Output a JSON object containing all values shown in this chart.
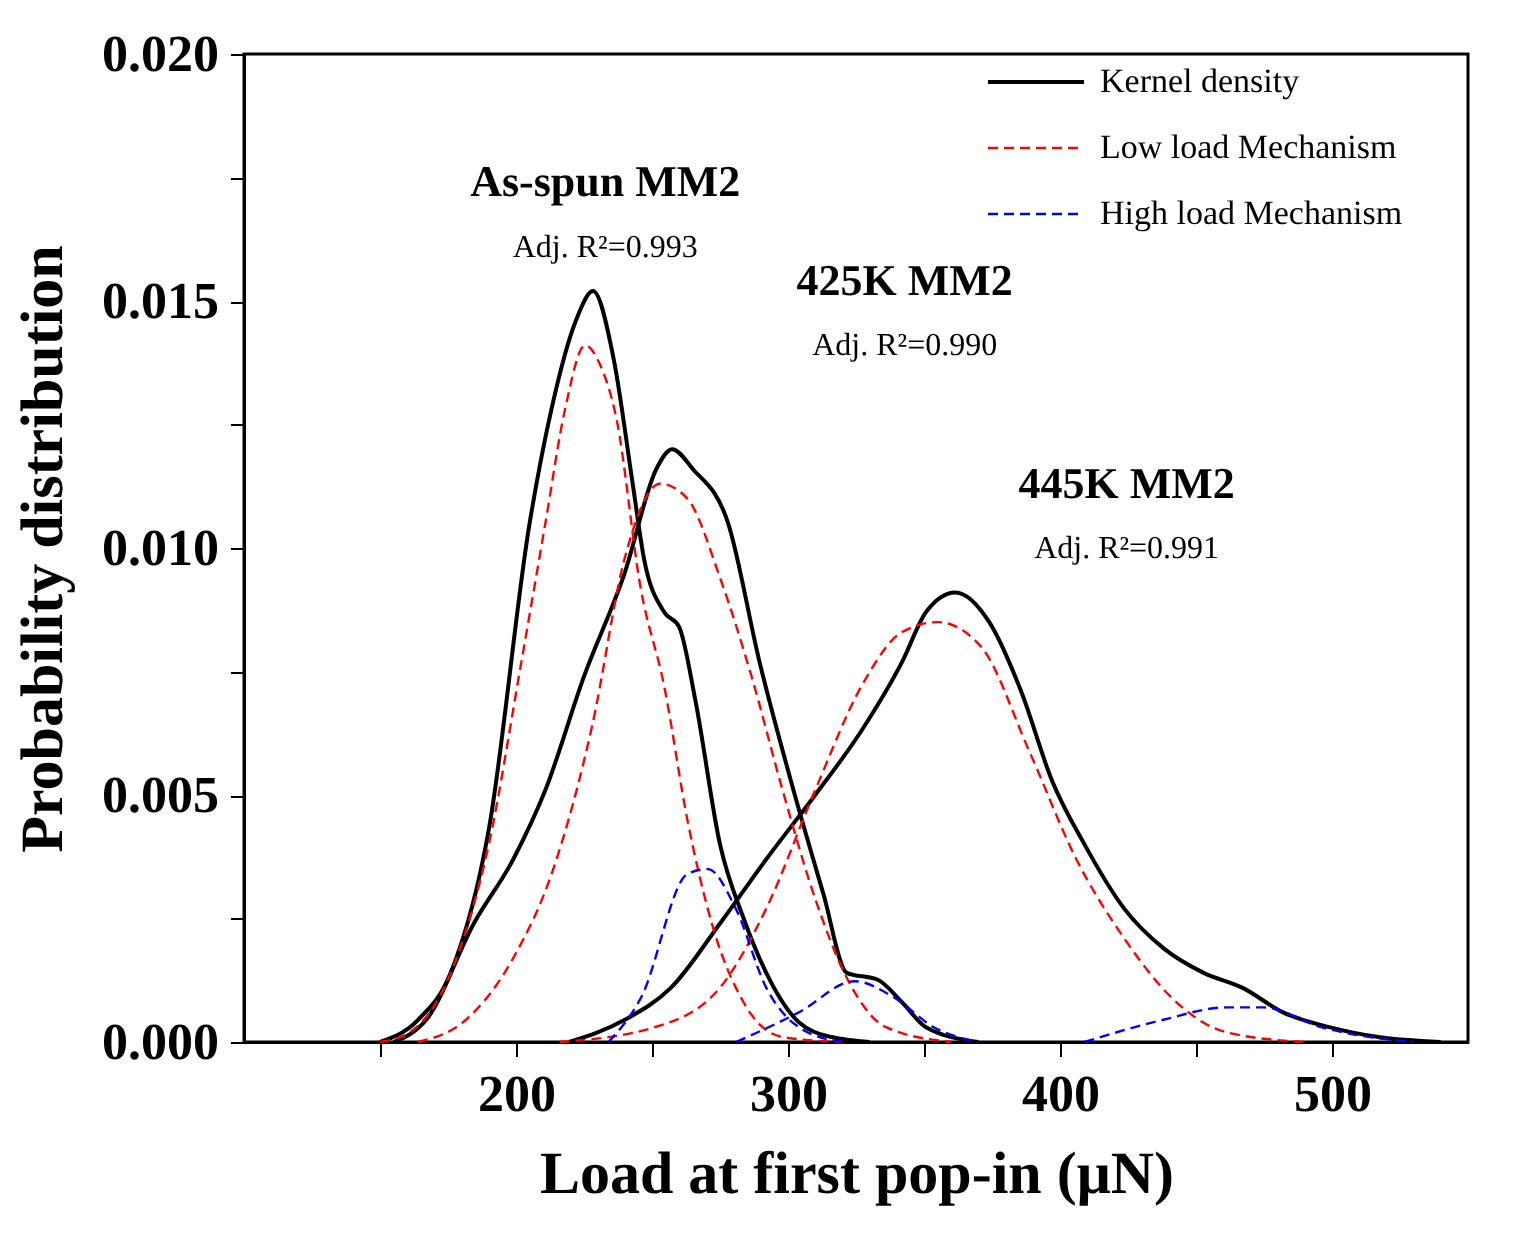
{
  "chart_data": {
    "type": "line",
    "xlabel": "Load at first pop-in (μN)",
    "ylabel": "Probability distribution",
    "xlim": [
      100,
      550
    ],
    "ylim": [
      0,
      0.02
    ],
    "xticks": [
      {
        "value": 150,
        "label": null
      },
      200,
      {
        "value": 250,
        "label": null
      },
      300,
      {
        "value": 350,
        "label": null
      },
      400,
      {
        "value": 450,
        "label": null
      },
      500
    ],
    "yticks": [
      {
        "value": 0,
        "label": "0.000"
      },
      {
        "value": 0.0025,
        "label": null
      },
      {
        "value": 0.005,
        "label": "0.005"
      },
      {
        "value": 0.0075,
        "label": null
      },
      {
        "value": 0.01,
        "label": "0.010"
      },
      {
        "value": 0.0125,
        "label": null
      },
      {
        "value": 0.015,
        "label": "0.015"
      },
      {
        "value": 0.0175,
        "label": null
      },
      {
        "value": 0.02,
        "label": "0.020"
      }
    ],
    "grid": false,
    "legend": "top right",
    "marker": "none",
    "series": [
      {
        "name": "Kernel density",
        "color": "#000000",
        "line_style": "solid",
        "x": [
          150,
          164,
          176,
          190,
          205,
          213,
          222,
          228.3,
          236,
          242.9,
          247,
          254.5,
          260,
          266,
          275,
          283.7,
          292,
          304,
          316,
          330
        ],
        "values": [
          0,
          0.00045,
          0.0014,
          0.0043,
          0.0105,
          0.0128,
          0.0146,
          0.0152,
          0.0138,
          0.0113,
          0.0098,
          0.0087,
          0.0084,
          0.0069,
          0.004,
          0.0025,
          0.0014,
          0.0004,
          0.0001,
          0
        ]
      },
      {
        "color": "#000000",
        "line_style": "solid",
        "x": [
          155,
          167,
          184.5,
          199,
          210.8,
          225,
          240,
          251.6,
          257.4,
          265,
          278,
          289.5,
          301,
          313,
          321.6,
          333,
          342,
          350.7,
          370
        ],
        "values": [
          0,
          0.00045,
          0.0024,
          0.0037,
          0.0051,
          0.0074,
          0.0095,
          0.0116,
          0.012,
          0.0116,
          0.0105,
          0.0077,
          0.0053,
          0.003,
          0.0014,
          0.00126,
          0.0008,
          0.0003,
          0
        ]
      },
      {
        "color": "#000000",
        "line_style": "solid",
        "x": [
          219.5,
          240,
          257,
          275,
          292,
          310,
          327,
          342,
          350.7,
          361.5,
          374,
          385.7,
          397,
          409,
          423.6,
          438,
          452.8,
          467,
          482,
          499,
          517,
          540
        ],
        "values": [
          0,
          0.00045,
          0.0011,
          0.0024,
          0.0037,
          0.005,
          0.0063,
          0.0077,
          0.0087,
          0.0091,
          0.0085,
          0.0071,
          0.0053,
          0.004,
          0.0027,
          0.0019,
          0.0014,
          0.0011,
          0.0006,
          0.0003,
          0.0001,
          0
        ]
      },
      {
        "name": "Low load Mechanism",
        "color": "#ff0000",
        "line_style": "dashed",
        "x": [
          150,
          161,
          176,
          190,
          202,
          210.8,
          218,
          225.4,
          231,
          237,
          245.8,
          254.5,
          263,
          272,
          283.7,
          298,
          320
        ],
        "values": [
          0,
          0.0002,
          0.0014,
          0.004,
          0.0077,
          0.0105,
          0.0128,
          0.0141,
          0.0137,
          0.0126,
          0.0092,
          0.0072,
          0.0045,
          0.0024,
          0.0008,
          0.0001,
          0
        ]
      },
      {
        "color": "#ff0000",
        "line_style": "dashed",
        "x": [
          164,
          181.6,
          199,
          213.7,
          228,
          240,
          253,
          263,
          275,
          286.6,
          298,
          310,
          321.6,
          336,
          360
        ],
        "values": [
          0,
          0.00045,
          0.0017,
          0.0035,
          0.0064,
          0.0098,
          0.0113,
          0.011,
          0.0094,
          0.0074,
          0.0051,
          0.0029,
          0.0013,
          0.0003,
          0
        ]
      },
      {
        "color": "#ff0000",
        "line_style": "dashed",
        "x": [
          216,
          251,
          275,
          292,
          310,
          327,
          342,
          355,
          371,
          388.6,
          406,
          423.6,
          441,
          461,
          490
        ],
        "values": [
          0,
          0.0003,
          0.0011,
          0.0027,
          0.0051,
          0.0072,
          0.0083,
          0.0085,
          0.008,
          0.0059,
          0.0037,
          0.0021,
          0.0009,
          0.0002,
          0
        ]
      },
      {
        "name": "High load Mechanism",
        "color": "#0000ff",
        "line_style": "dashed",
        "x": [
          234,
          246,
          263,
          270.5,
          280.8,
          292,
          304,
          320
        ],
        "values": [
          0,
          0.0009,
          0.0034,
          0.0035,
          0.0027,
          0.0011,
          0.0003,
          0
        ]
      },
      {
        "color": "#0000ff",
        "line_style": "dashed",
        "x": [
          281,
          304,
          324.5,
          339,
          353.6,
          370
        ],
        "values": [
          0,
          0.0006,
          0.00123,
          0.0009,
          0.0003,
          0
        ]
      },
      {
        "color": "#0000ff",
        "line_style": "dashed",
        "x": [
          409,
          438,
          461,
          475,
          496,
          514,
          530
        ],
        "values": [
          0,
          0.00045,
          0.0007,
          0.0007,
          0.0003,
          0.0001,
          0
        ]
      }
    ],
    "annotations": [
      "As-spun MM2",
      "Adj. R²=0.993",
      "425K MM2",
      "Adj. R²=0.990",
      "445K MM2",
      "Adj. R²=0.991"
    ]
  }
}
